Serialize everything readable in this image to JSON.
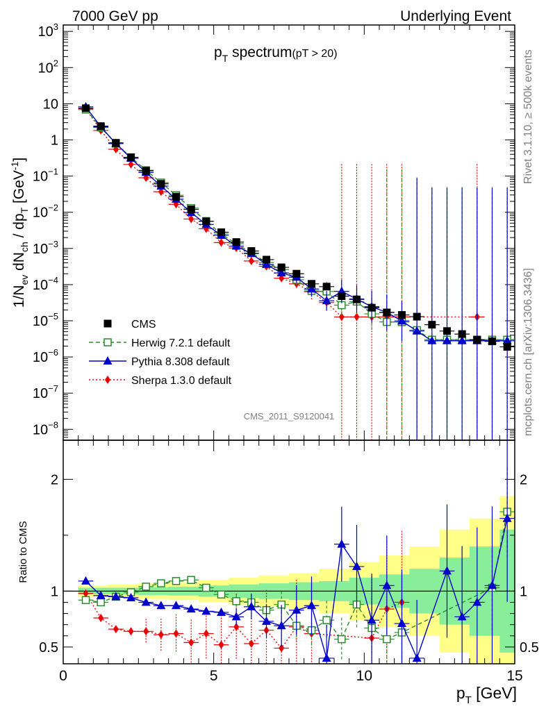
{
  "header": {
    "left": "7000 GeV pp",
    "right": "Underlying Event",
    "rivet": "Rivet 3.1.10, ≥ 500k events",
    "mcplots": "mcplots.cern.ch [arXiv:1306.3436]"
  },
  "chart_data": [
    {
      "type": "scatter",
      "yscale": "log",
      "title": "p_T spectrum (pT > 20)",
      "title_main": "p",
      "title_sub": "T",
      "title_rest": " spectrum",
      "title_cut": "(pT > 20)",
      "ylabel": "1/N_ev dN_ch / dp_T [GeV^-1]",
      "watermark": "CMS_2011_S9120041",
      "xlim": [
        0,
        15
      ],
      "ylim": [
        5e-09,
        1500
      ],
      "y_ticks": [
        {
          "value": 1000,
          "label": "10",
          "exp": "3"
        },
        {
          "value": 100,
          "label": "10",
          "exp": "2"
        },
        {
          "value": 10,
          "label": "10",
          "exp": ""
        },
        {
          "value": 1,
          "label": "1",
          "exp": ""
        },
        {
          "value": 0.1,
          "label": "10",
          "exp": "−1"
        },
        {
          "value": 0.01,
          "label": "10",
          "exp": "−2"
        },
        {
          "value": 0.001,
          "label": "10",
          "exp": "−3"
        },
        {
          "value": 0.0001,
          "label": "10",
          "exp": "−4"
        },
        {
          "value": 1e-05,
          "label": "10",
          "exp": "−5"
        },
        {
          "value": 1e-06,
          "label": "10",
          "exp": "−6"
        },
        {
          "value": 1e-07,
          "label": "10",
          "exp": "−7"
        },
        {
          "value": 1e-08,
          "label": "10",
          "exp": "−8"
        }
      ],
      "x": [
        0.75,
        1.25,
        1.75,
        2.25,
        2.75,
        3.25,
        3.75,
        4.25,
        4.75,
        5.25,
        5.75,
        6.25,
        6.75,
        7.25,
        7.75,
        8.25,
        8.75,
        9.25,
        9.75,
        10.25,
        10.75,
        11.25,
        11.75,
        12.25,
        12.75,
        13.25,
        13.75,
        14.25,
        14.75
      ],
      "series": [
        {
          "name": "CMS",
          "color": "#000000",
          "marker": "square-filled",
          "values": [
            7.5,
            2.4,
            0.83,
            0.33,
            0.14,
            0.061,
            0.027,
            0.012,
            0.0056,
            0.0028,
            0.0015,
            0.00085,
            0.00049,
            0.0003,
            0.0002,
            0.000105,
            8.8e-05,
            4.8e-05,
            3.9e-05,
            2.3e-05,
            1.7e-05,
            1.45e-05,
            1.3e-05,
            7.8e-06,
            5.2e-06,
            4.3e-06,
            3e-06,
            2.7e-06,
            1.9e-06
          ]
        },
        {
          "name": "Herwig 7.2.1 default",
          "color": "#2b8a2b",
          "marker": "square-open",
          "line": "dashed",
          "values": [
            6.9,
            2.2,
            0.79,
            0.33,
            0.145,
            0.066,
            0.0295,
            0.013,
            0.0057,
            0.0025,
            0.00135,
            0.00075,
            0.00041,
            0.00026,
            0.000136,
            6.7e-05,
            6.45e-05,
            2.7e-05,
            3.4e-05,
            1.55e-05,
            9.3e-06,
            9.2e-06,
            5.5e-06,
            3e-06,
            3e-06,
            3e-06,
            3e-06,
            3e-06,
            3e-06
          ]
        },
        {
          "name": "Pythia 8.308 default",
          "color": "#0000cc",
          "marker": "triangle-filled",
          "line": "solid",
          "values": [
            8.2,
            2.3,
            0.79,
            0.31,
            0.126,
            0.053,
            0.023,
            0.0098,
            0.0046,
            0.0023,
            0.00116,
            0.00072,
            0.00036,
            0.00021,
            0.00016,
            7.55e-05,
            3.58e-05,
            6.5e-05,
            4e-05,
            2.45e-05,
            1.7e-05,
            9.9e-06,
            5.2e-06,
            2.8e-06,
            2.8e-06,
            2.8e-06,
            2.8e-06,
            2.8e-06,
            2.8e-06
          ]
        },
        {
          "name": "Sherpa 1.3.0 default",
          "color": "#ee0000",
          "marker": "diamond-filled",
          "line": "dotted",
          "values": [
            7.3,
            1.83,
            0.55,
            0.21,
            0.09,
            0.037,
            0.0166,
            0.0065,
            0.0035,
            0.00145,
            0.00103,
            0.00045,
            0.00032,
            0.00015,
            0.000105,
            6.4e-05,
            3.2e-05,
            1.28e-05,
            1.28e-05,
            1.28e-05,
            1.28e-05,
            1.28e-05,
            null,
            null,
            null,
            null,
            1.28e-05,
            null,
            null
          ]
        }
      ],
      "legend": [
        "CMS",
        "Herwig 7.2.1 default",
        "Pythia 8.308 default",
        "Sherpa 1.3.0 default"
      ],
      "legend_position": "bottom-left"
    },
    {
      "type": "line",
      "ylabel": "Ratio to CMS",
      "xlabel": "p_T [GeV]",
      "xlabel_main": "p",
      "xlabel_sub": "T",
      "xlabel_rest": " [GeV]",
      "xlim": [
        0,
        15
      ],
      "ylim": [
        0.35,
        2.35
      ],
      "x_ticks": [
        0,
        5,
        10,
        15
      ],
      "y_ticks": [
        0.5,
        1,
        2
      ],
      "reference": 1,
      "band_x": [
        0.5,
        1.5,
        2.5,
        3.5,
        4.5,
        5.5,
        6.5,
        7.5,
        8.5,
        9.5,
        10.5,
        11.5,
        12.5,
        13.5,
        14.5,
        15.0
      ],
      "band_inner": [
        0.03,
        0.03,
        0.035,
        0.04,
        0.05,
        0.06,
        0.07,
        0.08,
        0.09,
        0.12,
        0.15,
        0.2,
        0.3,
        0.4,
        0.55,
        0.6
      ],
      "band_outer": [
        0.05,
        0.06,
        0.07,
        0.08,
        0.1,
        0.12,
        0.14,
        0.16,
        0.2,
        0.26,
        0.32,
        0.4,
        0.55,
        0.65,
        0.85,
        0.9
      ],
      "x": [
        0.75,
        1.25,
        1.75,
        2.25,
        2.75,
        3.25,
        3.75,
        4.25,
        4.75,
        5.25,
        5.75,
        6.25,
        6.75,
        7.25,
        7.75,
        8.25,
        8.75,
        9.25,
        9.75,
        10.25,
        10.75,
        11.25,
        11.75,
        12.25,
        12.75,
        13.25,
        13.75,
        14.25,
        14.75
      ],
      "series": [
        {
          "name": "Herwig 7.2.1 default",
          "color": "#2b8a2b",
          "marker": "square-open",
          "line": "dashed",
          "values": [
            0.92,
            0.9,
            0.95,
            0.99,
            1.04,
            1.07,
            1.09,
            1.1,
            1.03,
            0.97,
            0.91,
            0.9,
            0.83,
            0.88,
            0.69,
            0.65,
            0.74,
            0.57,
            0.88,
            0.67,
            0.57,
            0.63,
            null,
            null,
            null,
            null,
            null,
            1.03,
            1.71
          ]
        },
        {
          "name": "Pythia 8.308 default",
          "color": "#0000cc",
          "marker": "triangle-filled",
          "line": "solid",
          "values": [
            1.09,
            0.96,
            0.95,
            0.94,
            0.9,
            0.87,
            0.87,
            0.84,
            0.82,
            0.81,
            0.77,
            0.86,
            0.73,
            0.69,
            0.83,
            0.87,
            0.4,
            1.42,
            1.22,
            0.74,
            1.05,
            0.71,
            0.4,
            null,
            1.18,
            0.77,
            0.9,
            1.05,
            1.65
          ]
        },
        {
          "name": "Sherpa 1.3.0 default",
          "color": "#ee0000",
          "marker": "diamond-filled",
          "line": "dotted",
          "values": [
            0.98,
            0.76,
            0.66,
            0.64,
            0.64,
            0.61,
            0.62,
            0.54,
            0.62,
            0.52,
            0.68,
            0.53,
            0.65,
            0.49,
            0.68,
            0.62,
            null,
            null,
            null,
            0.58,
            0.84,
            0.9,
            null,
            null,
            null,
            null,
            null,
            null,
            null
          ]
        }
      ]
    }
  ]
}
